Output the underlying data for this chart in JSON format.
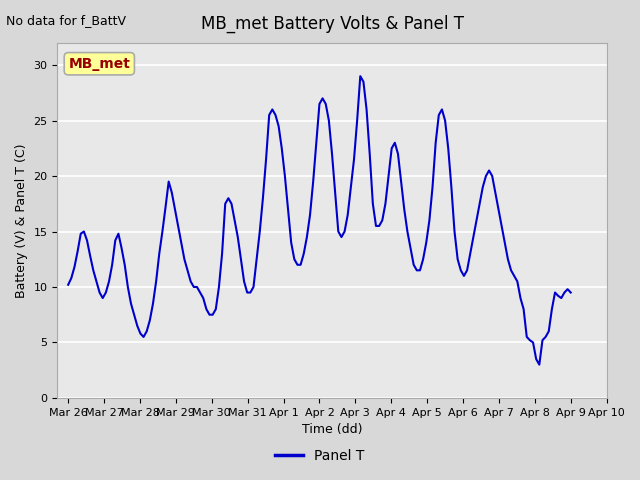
{
  "title": "MB_met Battery Volts & Panel T",
  "top_left_text": "No data for f_BattV",
  "ylabel": "Battery (V) & Panel T (C)",
  "xlabel": "Time (dd)",
  "legend_label": "Panel T",
  "annotation_label": "MB_met",
  "ylim": [
    0,
    32
  ],
  "yticks": [
    0,
    5,
    10,
    15,
    20,
    25,
    30
  ],
  "xtick_labels": [
    "Mar 26",
    "Mar 27",
    "Mar 28",
    "Mar 29",
    "Mar 30",
    "Mar 31",
    "Apr 1",
    "Apr 2",
    "Apr 3",
    "Apr 4",
    "Apr 5",
    "Apr 6",
    "Apr 7",
    "Apr 8",
    "Apr 9",
    "Apr 10"
  ],
  "line_color": "#0000cc",
  "line_width": 1.5,
  "plot_bg_color": "#e8e8e8",
  "fig_bg_color": "#d8d8d8",
  "grid_color": "#ffffff",
  "annotation_bg": "#ffff99",
  "annotation_fg": "#990000",
  "annotation_edge": "#aaaaaa",
  "panel_t_data_y": [
    10.2,
    10.8,
    11.8,
    13.2,
    14.8,
    15.0,
    14.2,
    12.8,
    11.5,
    10.5,
    9.5,
    9.0,
    9.5,
    10.5,
    12.0,
    14.2,
    14.8,
    13.5,
    12.0,
    10.0,
    8.5,
    7.5,
    6.5,
    5.8,
    5.5,
    6.0,
    7.0,
    8.5,
    10.5,
    13.0,
    15.0,
    17.2,
    19.5,
    18.5,
    17.0,
    15.5,
    14.0,
    12.5,
    11.5,
    10.5,
    10.0,
    10.0,
    9.5,
    9.0,
    8.0,
    7.5,
    7.5,
    8.0,
    10.0,
    13.0,
    17.5,
    18.0,
    17.5,
    16.0,
    14.5,
    12.5,
    10.5,
    9.5,
    9.5,
    10.0,
    12.5,
    15.0,
    18.0,
    21.5,
    25.5,
    26.0,
    25.5,
    24.5,
    22.5,
    20.0,
    17.0,
    14.0,
    12.5,
    12.0,
    12.0,
    13.0,
    14.5,
    16.5,
    19.5,
    23.0,
    26.5,
    27.0,
    26.5,
    25.0,
    22.0,
    18.5,
    15.0,
    14.5,
    15.0,
    16.5,
    19.0,
    21.5,
    25.0,
    29.0,
    28.5,
    26.0,
    22.0,
    17.5,
    15.5,
    15.5,
    16.0,
    17.5,
    20.0,
    22.5,
    23.0,
    22.0,
    19.5,
    17.0,
    15.0,
    13.5,
    12.0,
    11.5,
    11.5,
    12.5,
    14.0,
    16.0,
    19.0,
    23.0,
    25.5,
    26.0,
    25.0,
    22.5,
    19.0,
    15.0,
    12.5,
    11.5,
    11.0,
    11.5,
    13.0,
    14.5,
    16.0,
    17.5,
    19.0,
    20.0,
    20.5,
    20.0,
    18.5,
    17.0,
    15.5,
    14.0,
    12.5,
    11.5,
    11.0,
    10.5,
    9.0,
    8.0,
    5.5,
    5.2,
    5.0,
    3.5,
    3.0,
    5.2,
    5.5,
    6.0,
    8.0,
    9.5,
    9.2,
    9.0,
    9.5,
    9.8,
    9.5
  ]
}
